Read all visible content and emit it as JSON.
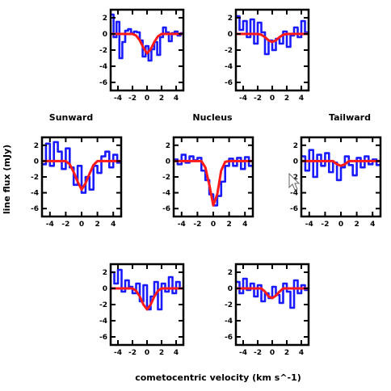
{
  "figure": {
    "xlabel": "cometocentric velocity (km s^-1)",
    "ylabel": "line flux (mJy)",
    "labels": {
      "sunward": "Sunward",
      "nucleus": "Nucleus",
      "tailward": "Tailward"
    }
  },
  "colors": {
    "observed": "#1a1aff",
    "model": "#ff1a1a",
    "axes": "#000000"
  },
  "chart_data": [
    {
      "type": "line",
      "panel": "top-left",
      "xlim": [
        -5,
        5
      ],
      "ylim": [
        -7,
        3
      ],
      "xticks": [
        -4,
        -2,
        0,
        2,
        4
      ],
      "yticks": [
        2,
        0,
        -2,
        -4,
        -6
      ],
      "series": [
        {
          "role": "observed",
          "style": "step",
          "x": [
            -5,
            -4.6,
            -4.2,
            -3.8,
            -3.4,
            -3.0,
            -2.6,
            -2.2,
            -1.8,
            -1.4,
            -1.0,
            -0.6,
            -0.2,
            0.2,
            0.6,
            1.0,
            1.4,
            1.8,
            2.2,
            2.6,
            3.0,
            3.4,
            3.8,
            4.2,
            4.6,
            5
          ],
          "y": [
            2.4,
            -0.4,
            1.5,
            -3.0,
            -1.0,
            0.4,
            0.6,
            0.1,
            0.3,
            0.2,
            -0.8,
            -2.8,
            -1.5,
            -3.3,
            -1.9,
            -1.0,
            -2.6,
            -0.4,
            0.8,
            0.2,
            -0.9,
            0.1,
            0.3,
            -0.2,
            0.1,
            0.0
          ]
        },
        {
          "role": "model",
          "style": "smooth",
          "x": [
            -5,
            -2.0,
            -1.5,
            -1.0,
            -0.5,
            0.0,
            0.5,
            1.0,
            1.5,
            2.0,
            5
          ],
          "y": [
            0,
            0,
            -0.2,
            -0.8,
            -1.7,
            -2.4,
            -1.9,
            -1.0,
            -0.3,
            0,
            0
          ]
        }
      ]
    },
    {
      "type": "line",
      "panel": "top-right",
      "xlim": [
        -5,
        5
      ],
      "ylim": [
        -7,
        3
      ],
      "xticks": [
        -4,
        -2,
        0,
        2,
        4
      ],
      "yticks": [
        2,
        0,
        -2,
        -4,
        -6
      ],
      "series": [
        {
          "role": "observed",
          "style": "step",
          "x": [
            -5,
            -4.5,
            -4.0,
            -3.5,
            -3.0,
            -2.5,
            -2.0,
            -1.5,
            -1.0,
            -0.5,
            0.0,
            0.5,
            1.0,
            1.5,
            2.0,
            2.5,
            3.0,
            3.5,
            4.0,
            4.5,
            5
          ],
          "y": [
            2.2,
            0.5,
            1.6,
            -0.4,
            1.8,
            -1.2,
            1.4,
            0.2,
            -2.5,
            -0.8,
            -2.0,
            -0.6,
            -1.2,
            0.3,
            -1.6,
            -0.2,
            0.8,
            -0.4,
            1.6,
            0.2,
            0.0
          ]
        },
        {
          "role": "model",
          "style": "smooth",
          "x": [
            -5,
            -2.0,
            -1.5,
            -1.0,
            -0.5,
            0.0,
            0.5,
            1.0,
            1.5,
            2.0,
            5
          ],
          "y": [
            0,
            0,
            -0.1,
            -0.4,
            -0.8,
            -1.0,
            -0.8,
            -0.4,
            -0.1,
            0,
            0
          ]
        }
      ]
    },
    {
      "type": "line",
      "panel": "middle-left",
      "xlim": [
        -5,
        5
      ],
      "ylim": [
        -7,
        3
      ],
      "xticks": [
        -4,
        -2,
        0,
        2,
        4
      ],
      "yticks": [
        2,
        0,
        -2,
        -4,
        -6
      ],
      "series": [
        {
          "role": "observed",
          "style": "step",
          "x": [
            -5,
            -4.5,
            -4.0,
            -3.5,
            -3.0,
            -2.5,
            -2.0,
            -1.5,
            -1.0,
            -0.5,
            0.0,
            0.5,
            1.0,
            1.5,
            2.0,
            2.5,
            3.0,
            3.5,
            4.0,
            4.5,
            5
          ],
          "y": [
            -0.4,
            2.2,
            -0.6,
            2.4,
            1.2,
            -1.0,
            1.6,
            -0.8,
            -3.0,
            -0.6,
            -4.0,
            -2.0,
            -3.6,
            -0.6,
            -1.5,
            0.6,
            1.2,
            -0.8,
            0.8,
            -0.2,
            0.0
          ]
        },
        {
          "role": "model",
          "style": "smooth",
          "x": [
            -5,
            -2.0,
            -1.5,
            -1.0,
            -0.5,
            0.0,
            0.5,
            1.0,
            1.5,
            2.0,
            5
          ],
          "y": [
            0,
            0,
            -0.4,
            -1.4,
            -2.6,
            -3.6,
            -2.8,
            -1.6,
            -0.5,
            0,
            0
          ]
        }
      ]
    },
    {
      "type": "line",
      "panel": "middle-center",
      "xlim": [
        -5,
        5
      ],
      "ylim": [
        -7,
        3
      ],
      "xticks": [
        -4,
        -2,
        0,
        2,
        4
      ],
      "yticks": [
        2,
        0,
        -2,
        -4,
        -6
      ],
      "series": [
        {
          "role": "observed",
          "style": "step",
          "x": [
            -5,
            -4.5,
            -4.0,
            -3.5,
            -3.0,
            -2.5,
            -2.0,
            -1.5,
            -1.0,
            -0.5,
            0.0,
            0.5,
            1.0,
            1.5,
            2.0,
            2.5,
            3.0,
            3.5,
            4.0,
            4.5,
            5
          ],
          "y": [
            0.2,
            -0.4,
            0.8,
            -0.2,
            0.6,
            0.1,
            0.4,
            -1.2,
            -2.4,
            -4.2,
            -5.6,
            -4.4,
            -2.6,
            -0.6,
            0.3,
            -0.6,
            0.4,
            -1.0,
            0.5,
            -0.6,
            0.0
          ]
        },
        {
          "role": "model",
          "style": "smooth",
          "x": [
            -5,
            -1.5,
            -1.0,
            -0.5,
            0.0,
            0.5,
            1.0,
            1.5,
            2.0,
            5
          ],
          "y": [
            0,
            0,
            -0.8,
            -3.0,
            -5.6,
            -4.2,
            -1.2,
            -0.1,
            0,
            0
          ]
        }
      ]
    },
    {
      "type": "line",
      "panel": "middle-right",
      "xlim": [
        -5,
        5
      ],
      "ylim": [
        -7,
        3
      ],
      "xticks": [
        -4,
        -2,
        0,
        2,
        4
      ],
      "yticks": [
        2,
        0,
        -2,
        -4,
        -6
      ],
      "series": [
        {
          "role": "observed",
          "style": "step",
          "x": [
            -5,
            -4.5,
            -4.0,
            -3.5,
            -3.0,
            -2.5,
            -2.0,
            -1.5,
            -1.0,
            -0.5,
            0.0,
            0.5,
            1.0,
            1.5,
            2.0,
            2.5,
            3.0,
            3.5,
            4.0,
            4.5,
            5
          ],
          "y": [
            0.6,
            -1.2,
            1.4,
            -2.0,
            0.8,
            -0.6,
            1.0,
            -1.4,
            -0.2,
            -2.4,
            -0.8,
            0.6,
            -0.5,
            -1.8,
            0.4,
            -0.8,
            0.6,
            -0.4,
            0.2,
            -0.5,
            0.0
          ]
        },
        {
          "role": "model",
          "style": "smooth",
          "x": [
            -5,
            -1.0,
            -0.5,
            0.0,
            0.5,
            1.0,
            5
          ],
          "y": [
            0,
            0,
            -0.4,
            -0.6,
            -0.4,
            0,
            0
          ]
        }
      ]
    },
    {
      "type": "line",
      "panel": "bottom-left",
      "xlim": [
        -5,
        5
      ],
      "ylim": [
        -7,
        3
      ],
      "xticks": [
        -4,
        -2,
        0,
        2,
        4
      ],
      "yticks": [
        2,
        0,
        -2,
        -4,
        -6
      ],
      "series": [
        {
          "role": "observed",
          "style": "step",
          "x": [
            -5,
            -4.5,
            -4.0,
            -3.5,
            -3.0,
            -2.5,
            -2.0,
            -1.5,
            -1.0,
            -0.5,
            0.0,
            0.5,
            1.0,
            1.5,
            2.0,
            2.5,
            3.0,
            3.5,
            4.0,
            4.5,
            5
          ],
          "y": [
            2.0,
            0.6,
            2.3,
            -0.4,
            1.0,
            0.2,
            -0.6,
            0.6,
            -1.6,
            0.4,
            -2.6,
            -1.0,
            0.8,
            -2.6,
            0.6,
            -0.4,
            1.4,
            -0.6,
            0.8,
            0.0,
            0.0
          ]
        },
        {
          "role": "model",
          "style": "smooth",
          "x": [
            -5,
            -2.0,
            -1.5,
            -1.0,
            -0.5,
            0.0,
            0.5,
            1.0,
            1.5,
            2.0,
            5
          ],
          "y": [
            0,
            0,
            -0.3,
            -1.0,
            -2.0,
            -2.6,
            -2.0,
            -1.0,
            -0.3,
            0,
            0
          ]
        }
      ]
    },
    {
      "type": "line",
      "panel": "bottom-right",
      "xlim": [
        -5,
        5
      ],
      "ylim": [
        -7,
        3
      ],
      "xticks": [
        -4,
        -2,
        0,
        2,
        4
      ],
      "yticks": [
        2,
        0,
        -2,
        -4,
        -6
      ],
      "series": [
        {
          "role": "observed",
          "style": "step",
          "x": [
            -5,
            -4.5,
            -4.0,
            -3.5,
            -3.0,
            -2.5,
            -2.0,
            -1.5,
            -1.0,
            -0.5,
            0.0,
            0.5,
            1.0,
            1.5,
            2.0,
            2.5,
            3.0,
            3.5,
            4.0,
            4.5,
            5
          ],
          "y": [
            0.8,
            -0.6,
            1.2,
            -0.2,
            0.6,
            -1.0,
            0.4,
            -1.6,
            -0.6,
            -1.2,
            0.2,
            -0.8,
            -1.8,
            0.6,
            -0.4,
            -2.4,
            1.0,
            -0.6,
            0.4,
            -0.2,
            0.0
          ]
        },
        {
          "role": "model",
          "style": "smooth",
          "x": [
            -5,
            -1.5,
            -1.0,
            -0.5,
            0.0,
            0.5,
            1.0,
            1.5,
            5
          ],
          "y": [
            0,
            0,
            -0.4,
            -1.0,
            -1.2,
            -0.9,
            -0.4,
            0,
            0
          ]
        }
      ]
    }
  ]
}
